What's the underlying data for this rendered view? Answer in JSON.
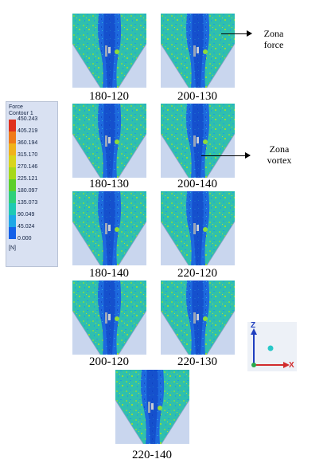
{
  "panels": [
    {
      "label": "180-120"
    },
    {
      "label": "200-130"
    },
    {
      "label": "180-130"
    },
    {
      "label": "200-140"
    },
    {
      "label": "180-140"
    },
    {
      "label": "220-120"
    },
    {
      "label": "200-120"
    },
    {
      "label": "220-130"
    },
    {
      "label": "220-140"
    }
  ],
  "legend": {
    "title_line1": "Force",
    "title_line2": "Contour 1",
    "ticks": [
      "450.243",
      "405.219",
      "360.194",
      "315.170",
      "270.146",
      "225.121",
      "180.097",
      "135.073",
      "90.049",
      "45.024",
      "0.000"
    ],
    "unit": "[N]",
    "colors": [
      "#e0301e",
      "#f07a1a",
      "#f0b21c",
      "#d8d41c",
      "#a6d81a",
      "#5ccf2b",
      "#2fd07a",
      "#1fc9b4",
      "#1ea7e6",
      "#1460e8"
    ]
  },
  "annotations": {
    "force_line1": "Zona",
    "force_line2": "force",
    "vortex_line1": "Zona",
    "vortex_line2": "vortex"
  },
  "axes": {
    "z": "Z",
    "x": "X",
    "z_color": "#1f3fbf",
    "x_color": "#d12c2c"
  }
}
